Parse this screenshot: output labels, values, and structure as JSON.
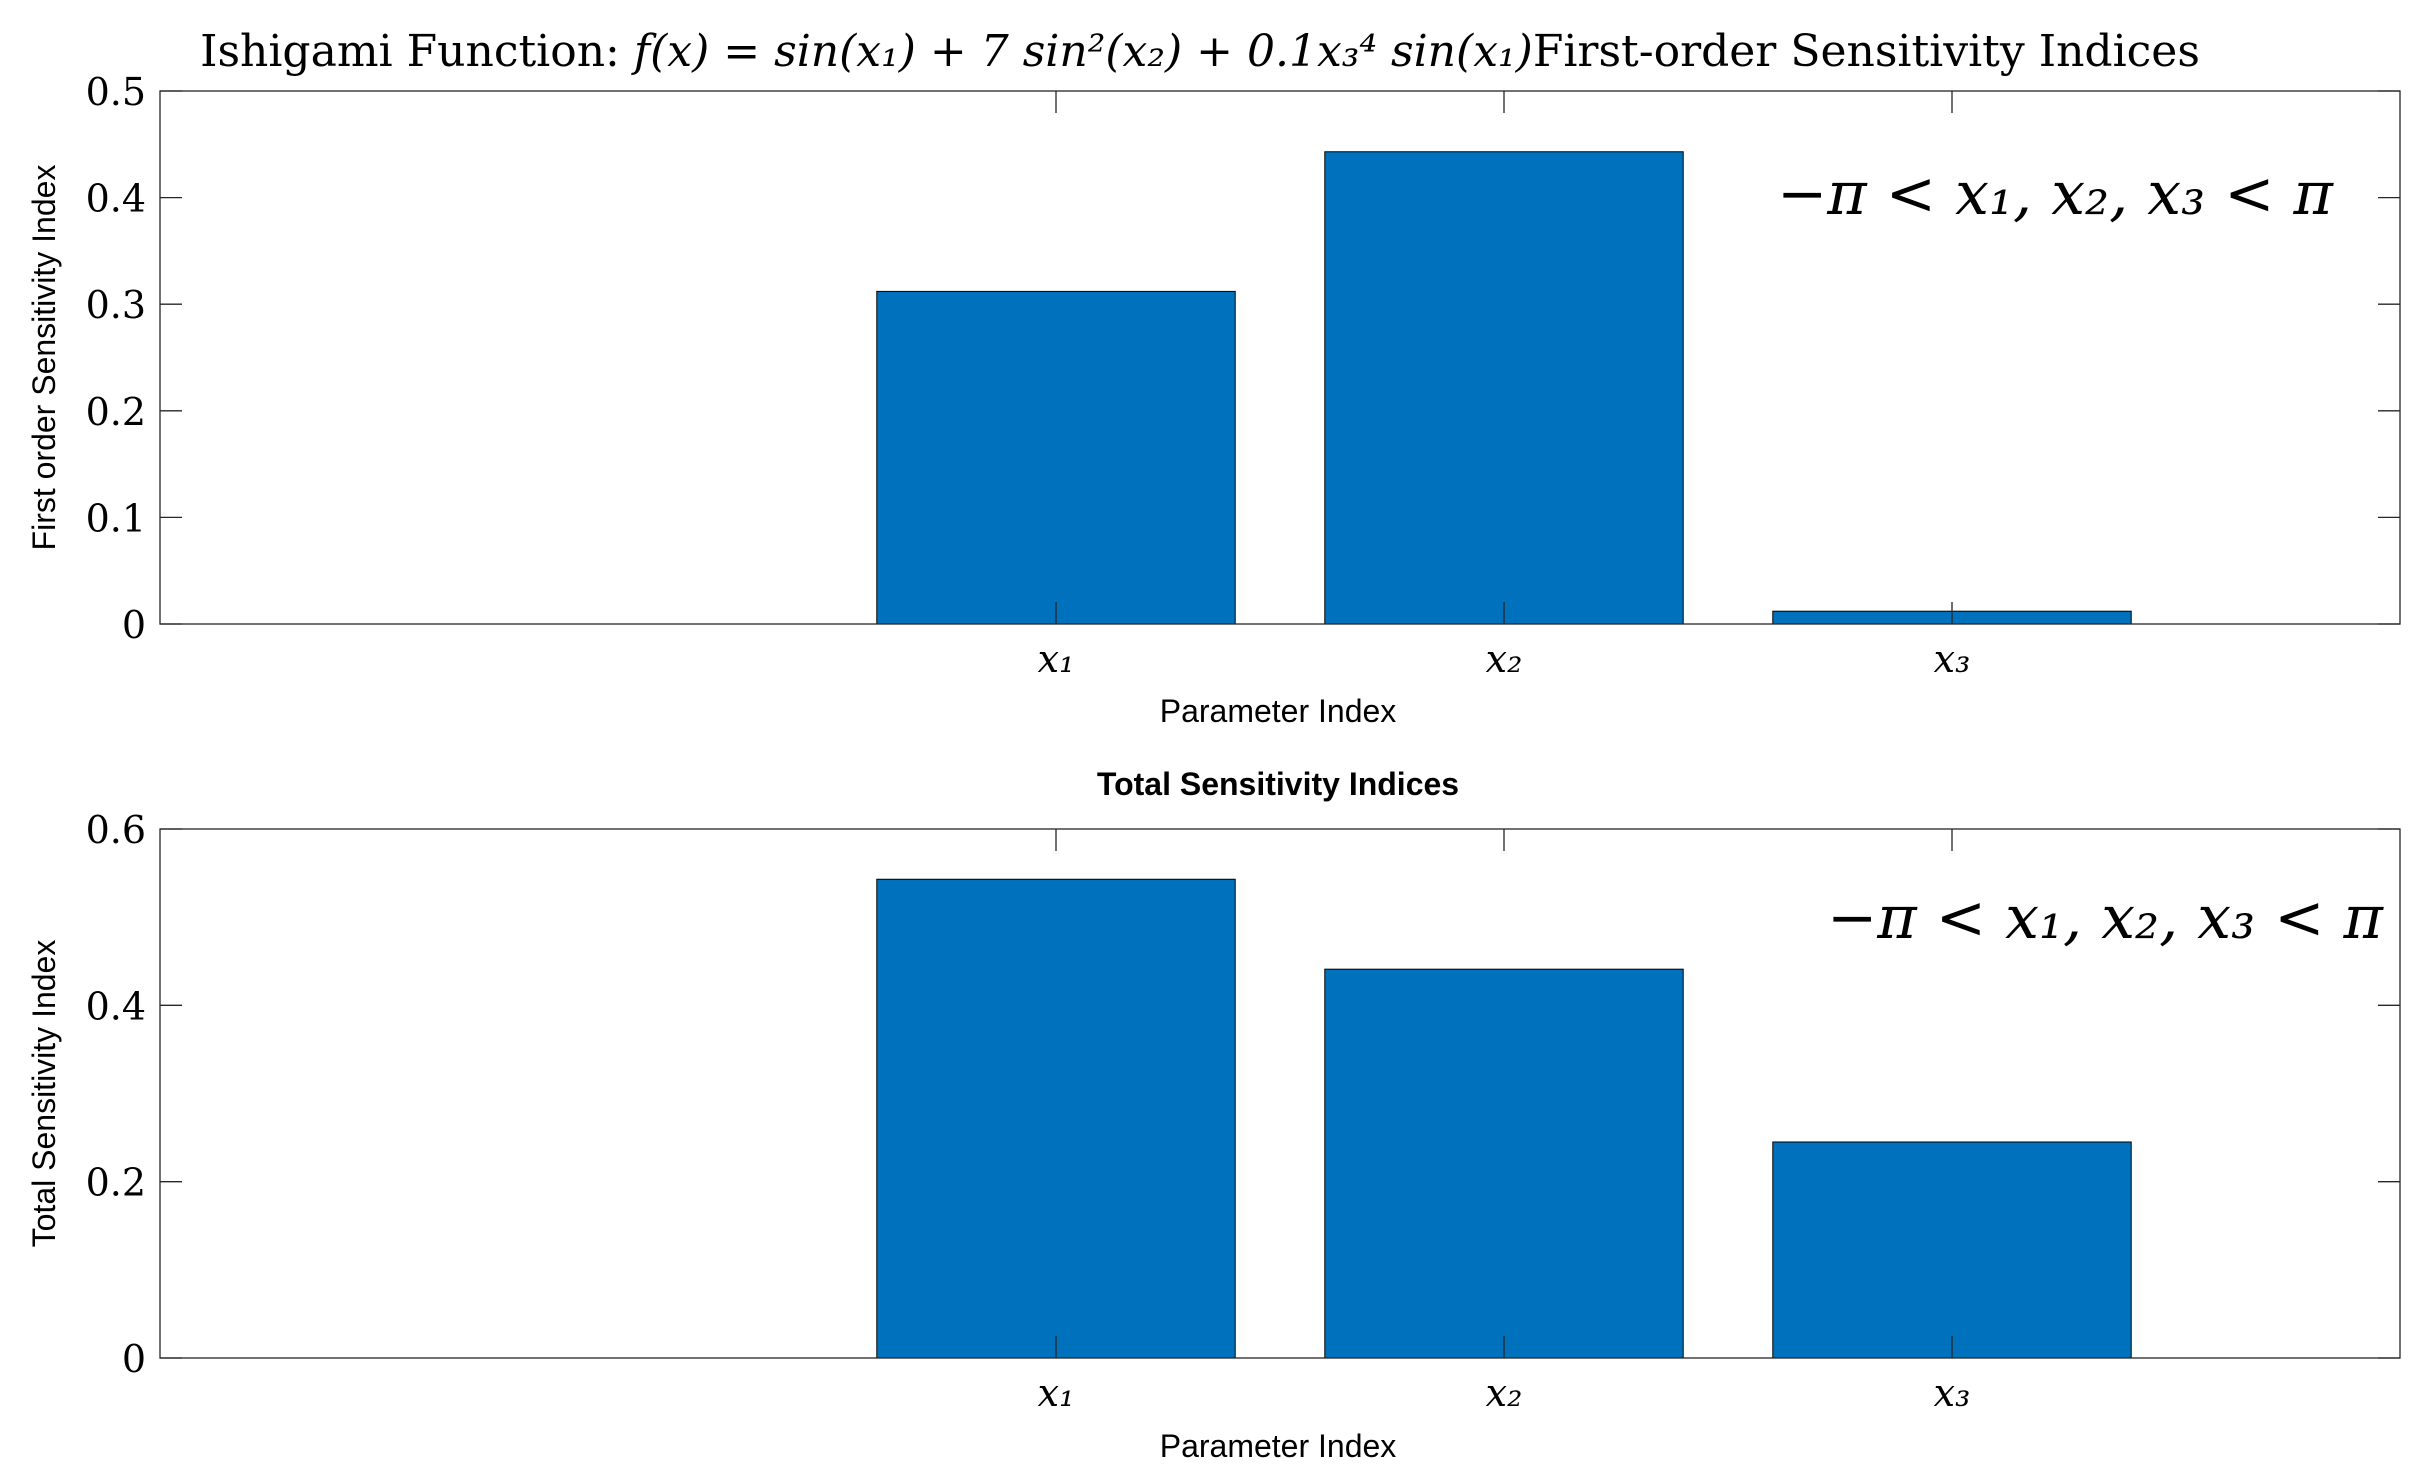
{
  "chart_data": [
    {
      "type": "bar",
      "title": "Ishigami Function: f(x) = sin(x₁) + 7 sin²(x₂) + 0.1x₃⁴ sin(x₁)First-order Sensitivity Indices",
      "title_parts": {
        "lead": "Ishigami Function: ",
        "formula": "f(x) = sin(x₁) + 7 sin²(x₂) + 0.1x₃⁴ sin(x₁)",
        "tail": "First-order Sensitivity Indices"
      },
      "categories": [
        "x₁",
        "x₂",
        "x₃"
      ],
      "values": [
        0.312,
        0.443,
        0.012
      ],
      "xlabel": "Parameter Index",
      "ylabel": "First order Sensitivity Index",
      "ylim": [
        0,
        0.5
      ],
      "yticks": [
        "0",
        "0.1",
        "0.2",
        "0.3",
        "0.4",
        "0.5"
      ],
      "annotation": "−π < x₁, x₂, x₃ < π",
      "bar_color": "#0072BD",
      "grid": false
    },
    {
      "type": "bar",
      "title": "Total Sensitivity Indices",
      "categories": [
        "x₁",
        "x₂",
        "x₃"
      ],
      "values": [
        0.543,
        0.441,
        0.245
      ],
      "xlabel": "Parameter Index",
      "ylabel": "Total Sensitivity Index",
      "ylim": [
        0,
        0.6
      ],
      "yticks": [
        "0",
        "0.2",
        "0.4",
        "0.6"
      ],
      "annotation": "−π < x₁, x₂, x₃ < π",
      "bar_color": "#0072BD",
      "grid": false
    }
  ]
}
